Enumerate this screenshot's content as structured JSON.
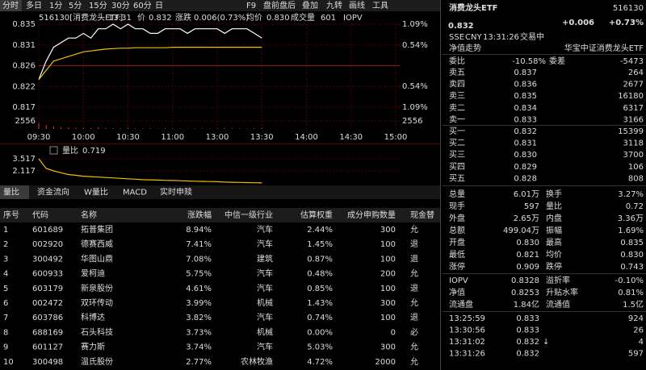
{
  "toolbar": {
    "left": [
      "分时",
      "多日",
      "1分",
      "5分",
      "15分",
      "30分",
      "60分",
      "日"
    ],
    "right": [
      "F9",
      "盘前盘后",
      "叠加",
      "九转",
      "画线",
      "工具"
    ]
  },
  "chart_header": {
    "code_name": "516130[消费龙头ETF]",
    "time": "13:31",
    "price_label": "价",
    "price": "0.832",
    "change_label": "涨跌",
    "change": "0.006(0.73%)",
    "avg_label": "均价",
    "avg": "0.830",
    "vol_label": "成交量",
    "vol": "601",
    "iopv_label": "IOPV"
  },
  "chart_data": [
    {
      "type": "line",
      "x": [
        "09:30",
        "09:35",
        "09:40",
        "09:45",
        "09:50",
        "09:55",
        "10:00",
        "10:05",
        "10:10",
        "10:15",
        "10:20",
        "10:25",
        "10:30",
        "10:35",
        "10:40",
        "10:45",
        "10:50",
        "10:55",
        "11:00",
        "11:05",
        "11:10",
        "11:15",
        "11:20",
        "11:25",
        "11:30",
        "13:05",
        "13:10",
        "13:15",
        "13:20",
        "13:25",
        "13:30"
      ],
      "series": [
        {
          "color": "#ffffff",
          "values": [
            0.823,
            0.827,
            0.83,
            0.831,
            0.832,
            0.832,
            0.833,
            0.832,
            0.834,
            0.834,
            0.835,
            0.834,
            0.835,
            0.834,
            0.834,
            0.833,
            0.833,
            0.834,
            0.834,
            0.834,
            0.833,
            0.834,
            0.834,
            0.834,
            0.834,
            0.833,
            0.834,
            0.834,
            0.834,
            0.833,
            0.832
          ]
        },
        {
          "color": "#f0c000",
          "values": [
            0.823,
            0.825,
            0.827,
            0.8275,
            0.828,
            0.8285,
            0.829,
            0.8292,
            0.8294,
            0.8296,
            0.8297,
            0.8298,
            0.8298,
            0.8299,
            0.8299,
            0.8299,
            0.8299,
            0.8299,
            0.83,
            0.83,
            0.83,
            0.83,
            0.83,
            0.83,
            0.83,
            0.83,
            0.83,
            0.83,
            0.83,
            0.83,
            0.83
          ]
        }
      ],
      "xlim": [
        "09:30",
        "15:00"
      ],
      "xticks": [
        "09:30",
        "10:00",
        "10:30",
        "11:00",
        "13:00",
        "13:30",
        "14:00",
        "14:30",
        "15:00"
      ],
      "ylim": [
        0.817,
        0.835
      ],
      "yticks": [
        0.835,
        {
          "value": 0.8305,
          "label": "0.831"
        },
        0.826,
        {
          "value": 0.8215,
          "label": "0.822"
        },
        0.817
      ],
      "y2lim": [
        -1.09,
        1.09
      ],
      "y2ticks": [
        {
          "value": 1.09,
          "label": "1.09%"
        },
        {
          "value": 0.54,
          "label": "0.54%"
        },
        {
          "value": -0.54,
          "label": "0.54%"
        },
        {
          "value": -1.09,
          "label": "1.09%"
        }
      ],
      "grid": true
    },
    {
      "type": "bar",
      "x": [
        "09:30",
        "09:35",
        "09:40",
        "09:45",
        "09:50",
        "09:55",
        "10:00",
        "10:05",
        "10:10",
        "10:15",
        "10:20",
        "10:25",
        "10:30",
        "10:35",
        "10:40",
        "10:45",
        "10:50",
        "10:55",
        "11:00",
        "11:05",
        "11:10",
        "11:15",
        "11:20",
        "11:25",
        "11:30",
        "13:05",
        "13:10",
        "13:15",
        "13:20",
        "13:25",
        "13:30"
      ],
      "values": [
        1900,
        1200,
        800,
        600,
        500,
        400,
        350,
        300,
        450,
        300,
        250,
        200,
        300,
        200,
        150,
        200,
        150,
        200,
        150,
        150,
        100,
        150,
        120,
        150,
        100,
        300,
        200,
        150,
        150,
        200,
        300
      ],
      "color": "#ff3232",
      "ylim": [
        0,
        2556
      ],
      "yticks": [
        2556
      ]
    },
    {
      "type": "line",
      "title": "量比",
      "current": 0.719,
      "x": [
        "09:30",
        "09:35",
        "09:40",
        "09:45",
        "09:50",
        "09:55",
        "10:00",
        "10:05",
        "10:10",
        "10:15",
        "10:20",
        "10:25",
        "10:30",
        "10:35",
        "10:40",
        "10:45",
        "10:50",
        "10:55",
        "11:00",
        "11:05",
        "11:10",
        "11:15",
        "11:20",
        "11:25",
        "11:30",
        "13:05",
        "13:10",
        "13:15",
        "13:20",
        "13:25",
        "13:30"
      ],
      "series": [
        {
          "color": "#f0c000",
          "values": [
            3.517,
            2.4,
            2.117,
            1.9,
            1.7,
            1.6,
            1.5,
            1.45,
            1.4,
            1.35,
            1.3,
            1.25,
            1.2,
            1.15,
            1.1,
            1.08,
            1.05,
            1.02,
            1.0,
            0.98,
            0.95,
            0.92,
            0.9,
            0.88,
            0.86,
            0.82,
            0.8,
            0.78,
            0.76,
            0.74,
            0.719
          ]
        }
      ],
      "ylim": [
        0.62,
        4.83
      ],
      "yticks": [
        3.517,
        2.117
      ]
    }
  ],
  "tabs": [
    "量比",
    "资金流向",
    "W量比",
    "MACD",
    "实时申赎"
  ],
  "table": {
    "header": [
      "序号",
      "代码",
      "名称",
      "涨跌幅",
      "中信一级行业",
      "估算权重",
      "成分申购数量",
      "现金替"
    ],
    "rows": [
      [
        "1",
        "601689",
        "拓普集团",
        "8.94%",
        "汽车",
        "2.44%",
        "300",
        "允"
      ],
      [
        "2",
        "002920",
        "德赛西威",
        "7.41%",
        "汽车",
        "1.45%",
        "100",
        "退"
      ],
      [
        "3",
        "300492",
        "华图山鼎",
        "7.08%",
        "建筑",
        "0.87%",
        "100",
        "退"
      ],
      [
        "4",
        "600933",
        "爱柯迪",
        "5.75%",
        "汽车",
        "0.48%",
        "200",
        "允"
      ],
      [
        "5",
        "603179",
        "新泉股份",
        "4.61%",
        "汽车",
        "0.85%",
        "100",
        "退"
      ],
      [
        "6",
        "002472",
        "双环传动",
        "3.99%",
        "机械",
        "1.43%",
        "300",
        "允"
      ],
      [
        "7",
        "603786",
        "科博达",
        "3.82%",
        "汽车",
        "0.74%",
        "100",
        "退"
      ],
      [
        "8",
        "688169",
        "石头科技",
        "3.73%",
        "机械",
        "0.00%",
        "0",
        "必"
      ],
      [
        "9",
        "601127",
        "赛力斯",
        "3.74%",
        "汽车",
        "5.03%",
        "300",
        "允"
      ],
      [
        "10",
        "300498",
        "温氏股份",
        "2.77%",
        "农林牧渔",
        "4.72%",
        "2000",
        "允"
      ]
    ]
  },
  "quote": {
    "name": "消费龙头ETF",
    "code": "516130",
    "price": "0.832",
    "change": "+0.006",
    "pct": "+0.73%",
    "exchange": "SSE",
    "currency": "CNY",
    "time": "13:31:26",
    "status": "交易中",
    "nav_trend": "净值走势",
    "fund_name": "华宝中证消费龙头ETF"
  },
  "order_ratio": {
    "label": "委比",
    "value": "-10.58%",
    "label2": "委差",
    "value2": "-5473"
  },
  "asks": [
    [
      "卖五",
      "0.837",
      "264"
    ],
    [
      "卖四",
      "0.836",
      "2677"
    ],
    [
      "卖三",
      "0.835",
      "16180"
    ],
    [
      "卖二",
      "0.834",
      "6317"
    ],
    [
      "卖一",
      "0.833",
      "3166"
    ]
  ],
  "bids": [
    [
      "买一",
      "0.832",
      "15399"
    ],
    [
      "买二",
      "0.831",
      "3118"
    ],
    [
      "买三",
      "0.830",
      "3700"
    ],
    [
      "买四",
      "0.829",
      "106"
    ],
    [
      "买五",
      "0.828",
      "808"
    ]
  ],
  "stats": [
    {
      "l1": "总量",
      "v1": "6.01万",
      "c1": "#ffffff",
      "l2": "换手",
      "v2": "3.27%",
      "c2": "#ffffff"
    },
    {
      "l1": "现手",
      "v1": "597",
      "c1": "#ffffff",
      "l2": "量比",
      "v2": "0.72",
      "c2": "#ffffff"
    },
    {
      "l1": "外盘",
      "v1": "2.65万",
      "c1": "#ff3232",
      "l2": "内盘",
      "v2": "3.36万",
      "c2": "#00e600"
    },
    {
      "l1": "总额",
      "v1": "499.04万",
      "c1": "#ffffff",
      "l2": "振幅",
      "v2": "1.69%",
      "c2": "#ffffff"
    },
    {
      "l1": "开盘",
      "v1": "0.830",
      "c1": "#ff3232",
      "l2": "最高",
      "v2": "0.835",
      "c2": "#ff3232"
    },
    {
      "l1": "最低",
      "v1": "0.821",
      "c1": "#00e600",
      "l2": "均价",
      "v2": "0.830",
      "c2": "#ff3232"
    },
    {
      "l1": "涨停",
      "v1": "0.909",
      "c1": "#ff3232",
      "l2": "跌停",
      "v2": "0.743",
      "c2": "#00e600"
    },
    {
      "l1": "IOPV",
      "v1": "0.8328",
      "c1": "#ffffff",
      "l2": "溢折率",
      "v2": "-0.10%",
      "c2": "#00e600"
    },
    {
      "l1": "净值",
      "v1": "0.8253",
      "c1": "#00e600",
      "l2": "升贴水率",
      "v2": "0.81%",
      "c2": "#ff3232"
    },
    {
      "l1": "流通盘",
      "v1": "1.84亿",
      "c1": "#ffffff",
      "l2": "流通值",
      "v2": "1.5亿",
      "c2": "#ffffff"
    }
  ],
  "trades": [
    {
      "time": "13:25:59",
      "price": "0.833",
      "qty": "924",
      "color": "#ff3232"
    },
    {
      "time": "13:30:56",
      "price": "0.833",
      "qty": "26",
      "color": "#ff3232"
    },
    {
      "time": "13:31:02",
      "price": "0.832",
      "mark": "↓",
      "qty": "4",
      "color": "#00e600"
    },
    {
      "time": "13:31:26",
      "price": "0.832",
      "qty": "597",
      "color": "#00e600"
    }
  ]
}
